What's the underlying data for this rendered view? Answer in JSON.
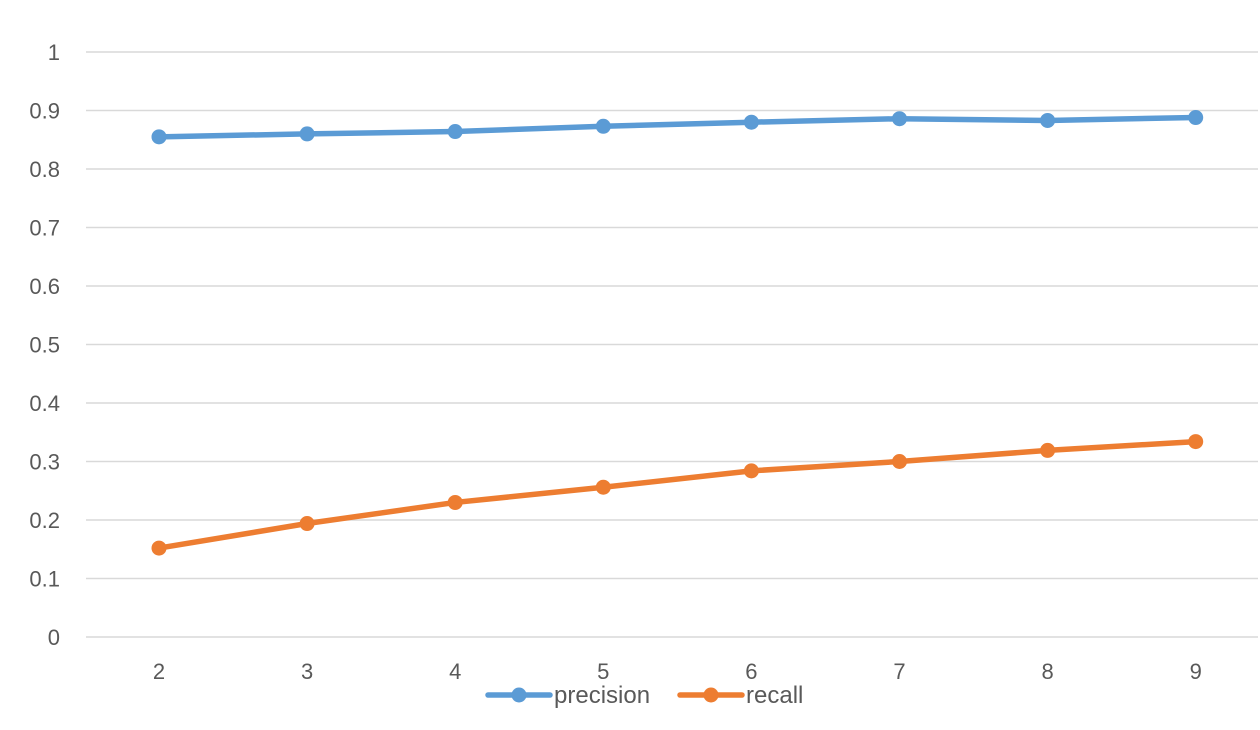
{
  "chart_data": {
    "type": "line",
    "title": "",
    "xlabel": "",
    "ylabel": "",
    "x": [
      2,
      3,
      4,
      5,
      6,
      7,
      8,
      9
    ],
    "ylim": [
      0,
      1
    ],
    "yticks": [
      0,
      0.1,
      0.2,
      0.3,
      0.4,
      0.5,
      0.6,
      0.7,
      0.8,
      0.9,
      1
    ],
    "ytick_labels": [
      "0",
      "0.1",
      "0.2",
      "0.3",
      "0.4",
      "0.5",
      "0.6",
      "0.7",
      "0.8",
      "0.9",
      "1"
    ],
    "xtick_labels": [
      "2",
      "3",
      "4",
      "5",
      "6",
      "7",
      "8",
      "9"
    ],
    "grid": "horizontal",
    "legend_position": "bottom",
    "series": [
      {
        "name": "precision",
        "color": "#5B9BD5",
        "values": [
          0.855,
          0.86,
          0.864,
          0.873,
          0.88,
          0.886,
          0.883,
          0.888
        ]
      },
      {
        "name": "recall",
        "color": "#ED7D31",
        "values": [
          0.152,
          0.194,
          0.23,
          0.256,
          0.284,
          0.3,
          0.319,
          0.334
        ]
      }
    ]
  }
}
